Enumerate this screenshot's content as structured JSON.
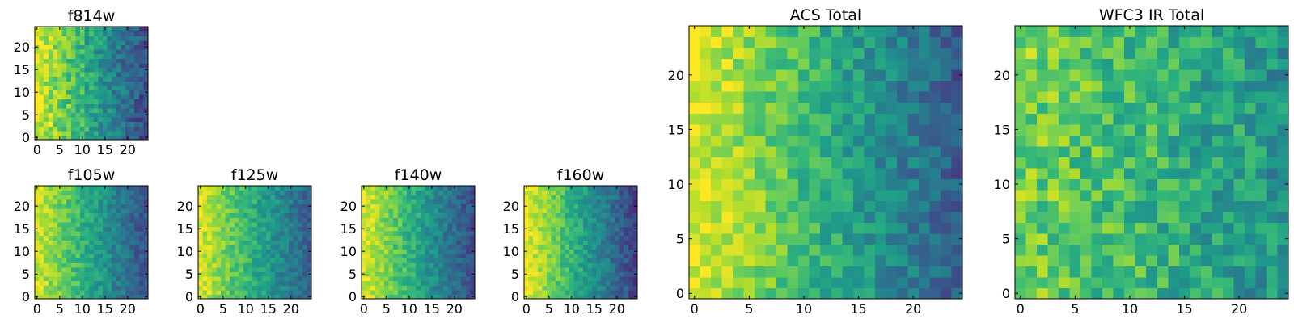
{
  "chart_data": [
    {
      "type": "heatmap",
      "title": "f814w",
      "xticks": [
        "0",
        "5",
        "10",
        "15",
        "20"
      ],
      "yticks": [
        "0",
        "5",
        "10",
        "15",
        "20"
      ],
      "grid_size": 25,
      "xlim": [
        0,
        24
      ],
      "ylim": [
        0,
        24
      ],
      "colormap": "viridis",
      "gradient": {
        "start": 0.95,
        "slope": 0.03,
        "noise": 0.14,
        "seed": 11
      }
    },
    {
      "type": "heatmap",
      "title": "f105w",
      "xticks": [
        "0",
        "5",
        "10",
        "15",
        "20"
      ],
      "yticks": [
        "0",
        "5",
        "10",
        "15",
        "20"
      ],
      "grid_size": 25,
      "xlim": [
        0,
        24
      ],
      "ylim": [
        0,
        24
      ],
      "colormap": "viridis",
      "gradient": {
        "start": 0.93,
        "slope": 0.028,
        "noise": 0.1,
        "seed": 23
      }
    },
    {
      "type": "heatmap",
      "title": "f125w",
      "xticks": [
        "0",
        "5",
        "10",
        "15",
        "20"
      ],
      "yticks": [
        "0",
        "5",
        "10",
        "15",
        "20"
      ],
      "grid_size": 25,
      "xlim": [
        0,
        24
      ],
      "ylim": [
        0,
        24
      ],
      "colormap": "viridis",
      "gradient": {
        "start": 0.93,
        "slope": 0.026,
        "noise": 0.1,
        "seed": 37
      }
    },
    {
      "type": "heatmap",
      "title": "f140w",
      "xticks": [
        "0",
        "5",
        "10",
        "15",
        "20"
      ],
      "yticks": [
        "0",
        "5",
        "10",
        "15",
        "20"
      ],
      "grid_size": 25,
      "xlim": [
        0,
        24
      ],
      "ylim": [
        0,
        24
      ],
      "colormap": "viridis",
      "gradient": {
        "start": 0.95,
        "slope": 0.03,
        "noise": 0.1,
        "seed": 41
      }
    },
    {
      "type": "heatmap",
      "title": "f160w",
      "xticks": [
        "0",
        "5",
        "10",
        "15",
        "20"
      ],
      "yticks": [
        "0",
        "5",
        "10",
        "15",
        "20"
      ],
      "grid_size": 25,
      "xlim": [
        0,
        24
      ],
      "ylim": [
        0,
        24
      ],
      "colormap": "viridis",
      "gradient": {
        "start": 0.97,
        "slope": 0.032,
        "noise": 0.1,
        "seed": 53
      }
    },
    {
      "type": "heatmap",
      "title": "ACS Total",
      "xticks": [
        "0",
        "5",
        "10",
        "15",
        "20"
      ],
      "yticks": [
        "0",
        "5",
        "10",
        "15",
        "20"
      ],
      "grid_size": 25,
      "xlim": [
        0,
        24
      ],
      "ylim": [
        0,
        24
      ],
      "colormap": "viridis",
      "gradient": {
        "start": 0.97,
        "slope": 0.028,
        "noise": 0.12,
        "seed": 67
      }
    },
    {
      "type": "heatmap",
      "title": "WFC3 IR Total",
      "xticks": [
        "0",
        "5",
        "10",
        "15",
        "20"
      ],
      "yticks": [
        "0",
        "5",
        "10",
        "15",
        "20"
      ],
      "grid_size": 25,
      "xlim": [
        0,
        24
      ],
      "ylim": [
        0,
        24
      ],
      "colormap": "viridis",
      "gradient": {
        "start": 0.8,
        "slope": 0.012,
        "noise": 0.16,
        "seed": 79
      }
    }
  ]
}
